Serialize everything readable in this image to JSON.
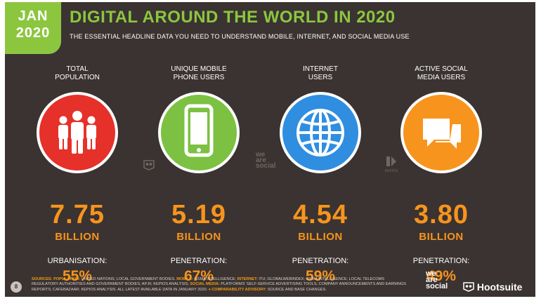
{
  "badge": {
    "month": "JAN",
    "year": "2020"
  },
  "title": "DIGITAL AROUND THE WORLD IN 2020",
  "subtitle": "THE ESSENTIAL HEADLINE DATA YOU NEED TO UNDERSTAND MOBILE, INTERNET, AND SOCIAL MEDIA USE",
  "columns": [
    {
      "label": "TOTAL\nPOPULATION",
      "value": "7.75",
      "unit": "BILLION",
      "stat_label": "URBANISATION:",
      "stat_value": "55%",
      "color": "#e5312a",
      "icon": "people-icon"
    },
    {
      "label": "UNIQUE MOBILE\nPHONE USERS",
      "value": "5.19",
      "unit": "BILLION",
      "stat_label": "PENETRATION:",
      "stat_value": "67%",
      "color": "#7cc142",
      "icon": "mobile-phone-icon"
    },
    {
      "label": "INTERNET\nUSERS",
      "value": "4.54",
      "unit": "BILLION",
      "stat_label": "PENETRATION:",
      "stat_value": "59%",
      "color": "#2f8ee0",
      "icon": "globe-icon"
    },
    {
      "label": "ACTIVE SOCIAL\nMEDIA USERS",
      "value": "3.80",
      "unit": "BILLION",
      "stat_label": "PENETRATION:",
      "stat_value": "49%",
      "color": "#f7941d",
      "icon": "chat-bubbles-icon"
    }
  ],
  "footer": {
    "sources_label": "SOURCES:",
    "population_label": "POPULATION:",
    "population_text": " UNITED NATIONS; LOCAL GOVERNMENT BODIES. ",
    "mobile_label": "MOBILE:",
    "mobile_text": " GSMA INTELLIGENCE; ",
    "internet_label": "INTERNET:",
    "internet_text": " ITU; GLOBALWEBINDEX; GSMA INTELLIGENCE; LOCAL TELECOMS REGULATORY AUTHORITIES AND GOVERNMENT BODIES; APJII; KEPIOS ANALYSIS; ",
    "social_label": "SOCIAL MEDIA:",
    "social_text": " PLATFORMS' SELF-SERVICE ADVERTISING TOOLS; COMPANY ANNOUNCEMENTS AND EARNINGS REPORTS; CAFEBAZAAR; KEPIOS ANALYSIS. ALL LATEST AVAILABLE DATA IN JANUARY 2020. ",
    "advisory_label": "♦ COMPARABILITY ADVISORY:",
    "advisory_text": " SOURCE AND BASE CHANGES."
  },
  "page_number": "8",
  "brand": {
    "we_are_social": "we are social",
    "hootsuite": "Hootsuite",
    "kepios": "KEPIOS"
  },
  "colors": {
    "background": "#3a3331",
    "accent": "#8cc63f"
  }
}
